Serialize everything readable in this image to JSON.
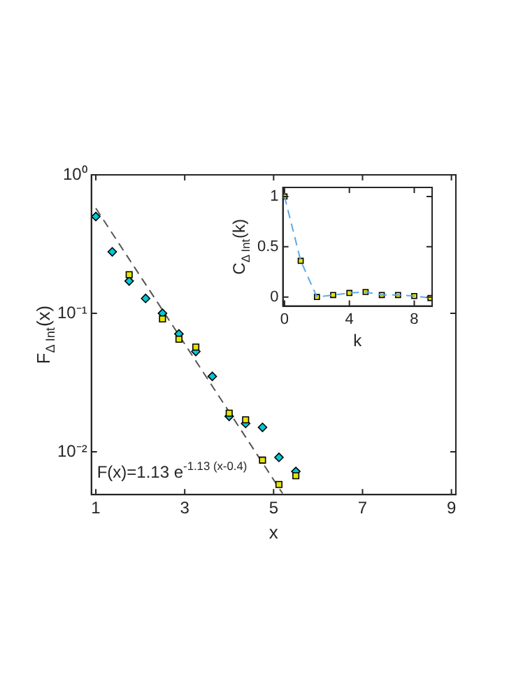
{
  "chart_data": [
    {
      "type": "scatter",
      "xlabel": "x",
      "ylabel": "F$_{Δ Int}$(x)",
      "log": "y",
      "grid": false,
      "legend": false,
      "xlim": [
        0.9,
        9.1
      ],
      "xticks": [
        1,
        3,
        5,
        7,
        9
      ],
      "ylim": [
        0.0049,
        1
      ],
      "yticks": [
        {
          "value": 1,
          "label": "10⁰"
        },
        {
          "value": 0.1,
          "label": "10⁻¹"
        },
        {
          "value": 0.01,
          "label": "10⁻²"
        }
      ],
      "series": [
        {
          "color": "#e6e600",
          "marker": "square",
          "x": [
            1.75,
            2.5,
            2.87,
            3.25,
            4,
            4.37,
            4.75,
            5.12,
            5.5
          ],
          "values": [
            0.19,
            0.091,
            0.065,
            0.057,
            0.019,
            0.017,
            0.0087,
            0.0058,
            0.0067
          ]
        },
        {
          "color": "#00c8d8",
          "marker": "diamond",
          "x": [
            1,
            1.37,
            1.75,
            2.12,
            2.5,
            2.87,
            3.25,
            3.62,
            4,
            4.37,
            4.75,
            5.12,
            5.5
          ],
          "values": [
            0.5,
            0.278,
            0.171,
            0.128,
            0.1,
            0.071,
            0.053,
            0.035,
            0.018,
            0.016,
            0.015,
            0.0091,
            0.0072
          ]
        },
        {
          "type": "line",
          "color": "#555555",
          "marker": "none",
          "line_style": "dashed",
          "x": [
            1,
            5.2
          ],
          "values": [
            0.574,
            0.005
          ]
        }
      ],
      "annotations": [
        "F(x)=1.13 e$^{-1.13 (x-0.4)}$"
      ]
    },
    {
      "type": "line",
      "xlabel": "k",
      "ylabel": "C$_{Δ Int}$(k)",
      "grid": false,
      "legend": false,
      "xlim": [
        -0.1,
        9.1
      ],
      "xticks": [
        0,
        4,
        8
      ],
      "ylim": [
        -0.09,
        1.09
      ],
      "yticks": [
        0,
        0.5,
        1
      ],
      "series": [
        {
          "color": "#5aa8e6",
          "marker": "none",
          "line_style": "dashed",
          "x": [
            0,
            1,
            2,
            3,
            4,
            5,
            6,
            7,
            8,
            9
          ],
          "values": [
            1,
            0.36,
            0,
            0.02,
            0.04,
            0.05,
            0.02,
            0.02,
            0.01,
            -0.01
          ]
        },
        {
          "type": "scatter",
          "color": "#e6e600",
          "marker": "square",
          "x": [
            0,
            1,
            2,
            3,
            4,
            5,
            6,
            7,
            8,
            9
          ],
          "values": [
            1,
            0.36,
            0,
            0.02,
            0.04,
            0.05,
            0.02,
            0.02,
            0.01,
            -0.01
          ]
        }
      ]
    }
  ]
}
